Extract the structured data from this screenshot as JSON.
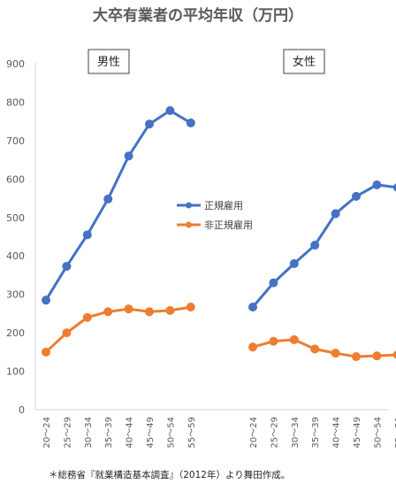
{
  "chart_data": {
    "type": "line",
    "title": "大卒有業者の平均年収（万円）",
    "ylim": [
      0,
      900
    ],
    "yticks": [
      "0",
      "100",
      "200",
      "300",
      "400",
      "500",
      "600",
      "700",
      "800",
      "900"
    ],
    "grid": false,
    "legend_position": "center",
    "note": "＊総務省『就業構造基本調査』（2012年）より舞田作成。",
    "colors": {
      "正規雇用": "#4472C4",
      "非正規雇用": "#ED7D31"
    },
    "panels": [
      {
        "label": "男性",
        "categories": [
          "20～24",
          "25～29",
          "30～34",
          "35～39",
          "40～44",
          "45～49",
          "50～54",
          "55～59"
        ],
        "series": [
          {
            "name": "正規雇用",
            "values": [
              285,
              373,
              455,
              548,
              660,
              743,
              778,
              746
            ]
          },
          {
            "name": "非正規雇用",
            "values": [
              150,
              200,
              240,
              255,
              262,
              255,
              258,
              267
            ]
          }
        ]
      },
      {
        "label": "女性",
        "categories": [
          "20～24",
          "25～29",
          "30～34",
          "35～39",
          "40～44",
          "45～49",
          "50～54",
          "55～59"
        ],
        "series": [
          {
            "name": "正規雇用",
            "values": [
              267,
              330,
              380,
              428,
              510,
              555,
              585,
              578
            ]
          },
          {
            "name": "非正規雇用",
            "values": [
              163,
              178,
              182,
              158,
              147,
              138,
              140,
              143
            ]
          }
        ]
      }
    ]
  }
}
